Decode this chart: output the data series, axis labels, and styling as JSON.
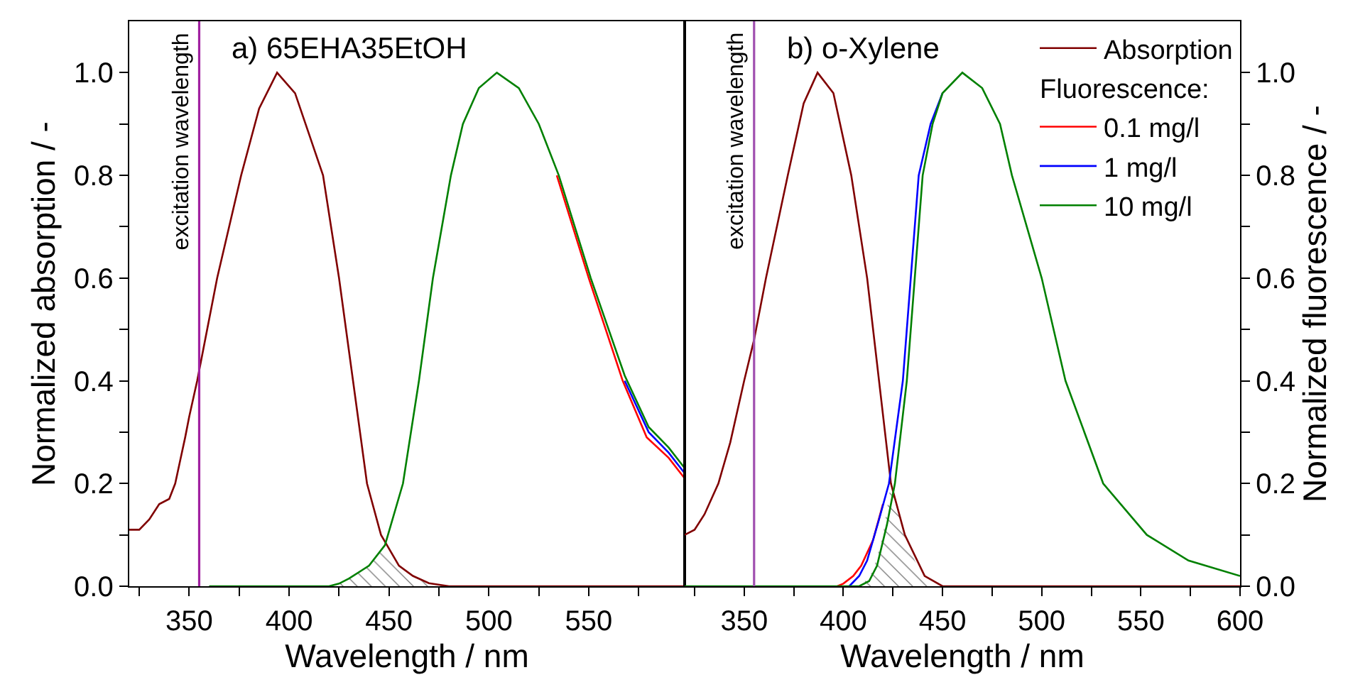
{
  "chart_data": [
    {
      "type": "line",
      "title": "a) 65EHA35EtOH",
      "xlabel": "Wavelength / nm",
      "ylabel": "Normalized absorption / -",
      "xlim": [
        320,
        598
      ],
      "xticks": [
        {
          "value": 325,
          "label": null
        },
        350,
        {
          "value": 375,
          "label": null
        },
        400,
        {
          "value": 425,
          "label": null
        },
        450,
        {
          "value": 475,
          "label": null
        },
        500,
        {
          "value": 525,
          "label": null
        },
        550,
        {
          "value": 575,
          "label": null
        }
      ],
      "ylim": [
        0,
        1.1
      ],
      "yticks": [
        {
          "value": 0,
          "label": "0.0"
        },
        {
          "value": 0.1,
          "label": null
        },
        0.2,
        {
          "value": 0.3,
          "label": null
        },
        0.4,
        {
          "value": 0.5,
          "label": null
        },
        0.6,
        {
          "value": 0.7,
          "label": null
        },
        0.8,
        {
          "value": 0.9,
          "label": null
        },
        {
          "value": 1,
          "label": "1.0"
        }
      ],
      "grid": false,
      "legend": false,
      "ref_lines": [
        {
          "axis": "x",
          "value": 355,
          "label": "excitation wavelength",
          "color": "#a020a0"
        }
      ],
      "series": [
        {
          "type": "area",
          "color": "#000000",
          "x": [
            425,
            430,
            440,
            448,
            455,
            462,
            470,
            478
          ],
          "values": [
            0.005,
            0.015,
            0.04,
            0.08,
            0.04,
            0.02,
            0.006,
            0
          ]
        },
        {
          "color": "#800000",
          "x": [
            320,
            325,
            330,
            335,
            340,
            343,
            348,
            350,
            354,
            364,
            376,
            385,
            394,
            403,
            410,
            417,
            425,
            432,
            439,
            446,
            455,
            462,
            470,
            480,
            598
          ],
          "values": [
            0.11,
            0.11,
            0.13,
            0.16,
            0.17,
            0.2,
            0.29,
            0.33,
            0.4,
            0.6,
            0.8,
            0.93,
            1.0,
            0.96,
            0.88,
            0.8,
            0.6,
            0.4,
            0.2,
            0.1,
            0.04,
            0.02,
            0.006,
            0,
            0
          ]
        },
        {
          "color": "#ff0000",
          "x": [
            534,
            550,
            567,
            579,
            590,
            598
          ],
          "values": [
            0.8,
            0.6,
            0.4,
            0.29,
            0.25,
            0.21
          ]
        },
        {
          "color": "#0000ff",
          "x": [
            568,
            580,
            590,
            598
          ],
          "values": [
            0.4,
            0.3,
            0.26,
            0.22
          ]
        },
        {
          "color": "#008000",
          "x": [
            360,
            365,
            420,
            425,
            430,
            440,
            448,
            457,
            465,
            472,
            481,
            487,
            495,
            504,
            515,
            525,
            535,
            551,
            568,
            580,
            590,
            598
          ],
          "values": [
            0,
            0,
            0,
            0.005,
            0.015,
            0.04,
            0.08,
            0.2,
            0.4,
            0.6,
            0.8,
            0.9,
            0.97,
            1.0,
            0.97,
            0.9,
            0.8,
            0.6,
            0.41,
            0.31,
            0.27,
            0.23
          ]
        }
      ]
    },
    {
      "type": "line",
      "title": "b) o-Xylene",
      "xlabel": "Wavelength / nm",
      "y2label": "Normalized fluorescence / -",
      "legend_title": "Fluorescence:",
      "xlim": [
        320,
        600
      ],
      "xticks": [
        {
          "value": 325,
          "label": null
        },
        350,
        {
          "value": 375,
          "label": null
        },
        400,
        {
          "value": 425,
          "label": null
        },
        450,
        {
          "value": 475,
          "label": null
        },
        500,
        {
          "value": 525,
          "label": null
        },
        550,
        {
          "value": 575,
          "label": null
        },
        600
      ],
      "y2lim": [
        0,
        1.1
      ],
      "y2ticks": [
        {
          "value": 0,
          "label": "0.0"
        },
        {
          "value": 0.1,
          "label": null
        },
        0.2,
        {
          "value": 0.3,
          "label": null
        },
        0.4,
        {
          "value": 0.5,
          "label": null
        },
        0.6,
        {
          "value": 0.7,
          "label": null
        },
        0.8,
        {
          "value": 0.9,
          "label": null
        },
        {
          "value": 1,
          "label": "1.0"
        }
      ],
      "grid": false,
      "legend": "top right",
      "ref_lines": [
        {
          "axis": "x",
          "value": 355,
          "label": "excitation wavelength",
          "color": "#a050b0"
        }
      ],
      "series": [
        {
          "type": "area",
          "axis": "y2",
          "color": "#000000",
          "x": [
            410,
            415,
            420,
            424,
            428,
            431,
            436,
            441,
            448
          ],
          "values": [
            0.005,
            0.03,
            0.1,
            0.2,
            0.15,
            0.1,
            0.05,
            0.02,
            0
          ]
        },
        {
          "name": "Absorption",
          "axis": "y2",
          "color": "#800000",
          "x": [
            320,
            325,
            330,
            337,
            343,
            350,
            355,
            361,
            372,
            380,
            387,
            395,
            404,
            412,
            418,
            424,
            431,
            441,
            450,
            600
          ],
          "values": [
            0.1,
            0.11,
            0.14,
            0.2,
            0.28,
            0.4,
            0.48,
            0.6,
            0.8,
            0.94,
            1.0,
            0.96,
            0.8,
            0.6,
            0.4,
            0.2,
            0.1,
            0.02,
            0,
            0
          ]
        },
        {
          "name": "0.1 mg/l",
          "axis": "y2",
          "color": "#ff0000",
          "x": [
            397,
            400,
            405,
            409,
            415,
            420
          ],
          "values": [
            0,
            0.005,
            0.02,
            0.04,
            0.09,
            0.16
          ]
        },
        {
          "name": "1 mg/l",
          "axis": "y2",
          "color": "#0000ff",
          "x": [
            403,
            408,
            412,
            418,
            423,
            430,
            434,
            438,
            444,
            450
          ],
          "values": [
            0,
            0.02,
            0.05,
            0.13,
            0.2,
            0.4,
            0.6,
            0.8,
            0.9,
            0.96
          ]
        },
        {
          "name": "10 mg/l",
          "axis": "y2",
          "color": "#008000",
          "x": [
            320,
            408,
            413,
            417,
            422,
            426,
            432,
            436,
            440,
            445,
            450,
            460,
            470,
            479,
            485,
            500,
            512,
            531,
            553,
            574,
            600
          ],
          "values": [
            0,
            0,
            0.01,
            0.04,
            0.12,
            0.2,
            0.4,
            0.6,
            0.8,
            0.9,
            0.96,
            1.0,
            0.97,
            0.9,
            0.8,
            0.6,
            0.4,
            0.2,
            0.1,
            0.05,
            0.02
          ]
        }
      ]
    }
  ]
}
